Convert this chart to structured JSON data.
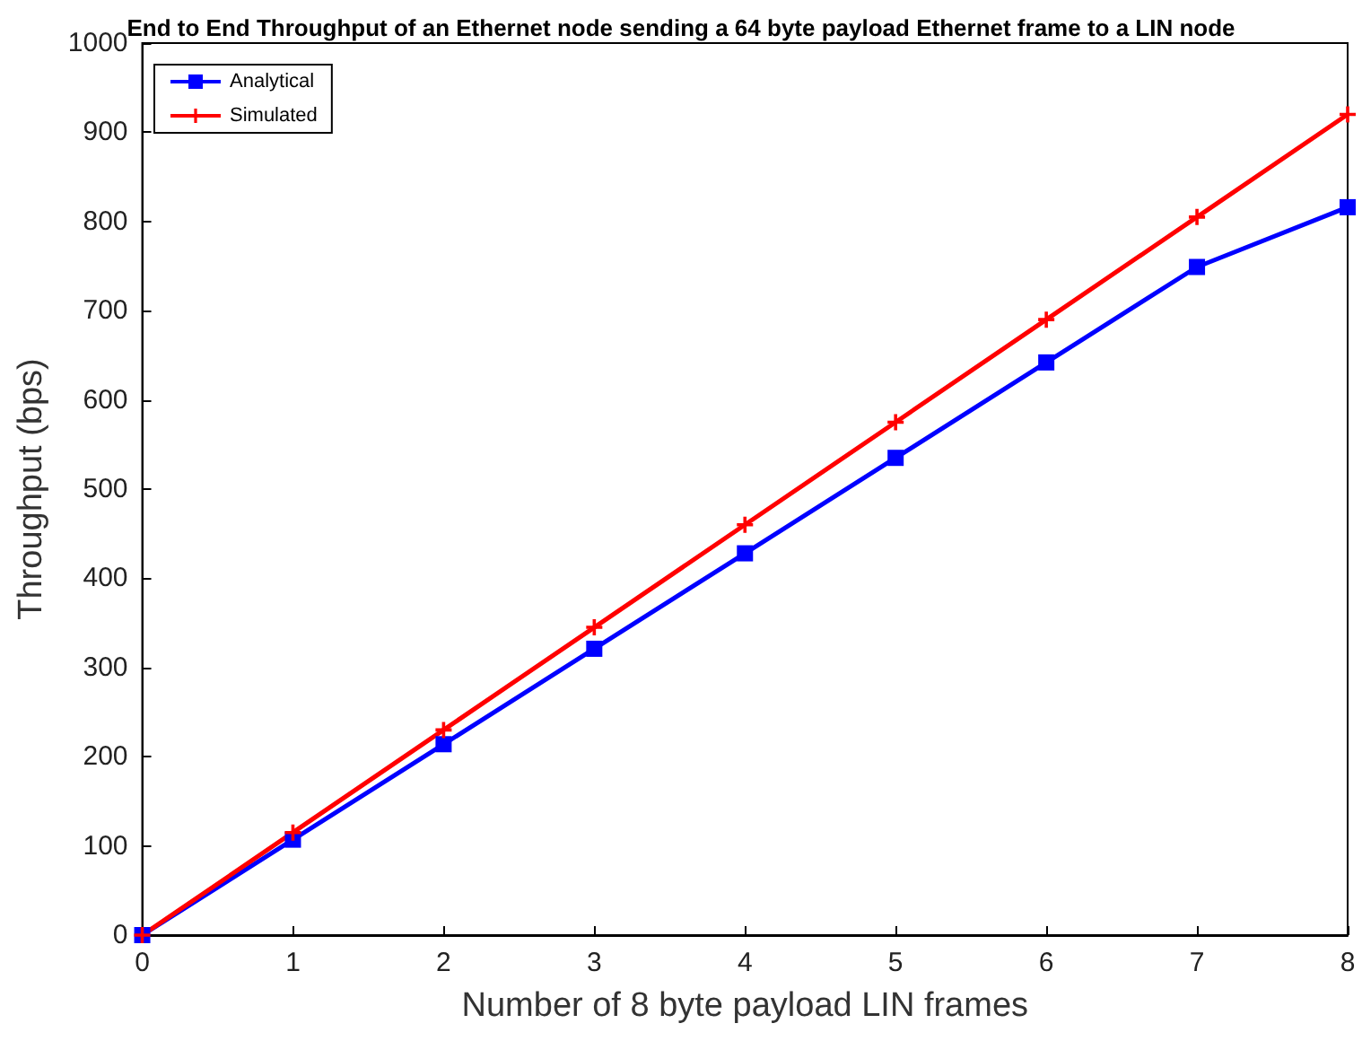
{
  "chart_data": {
    "type": "line",
    "title": "End to End Throughput of an Ethernet node sending a 64 byte payload Ethernet frame to a LIN node",
    "xlabel": "Number of 8 byte payload LIN frames",
    "ylabel": "Throughput (bps)",
    "x": [
      0,
      1,
      2,
      3,
      4,
      5,
      6,
      7,
      8
    ],
    "series": [
      {
        "name": "Analytical",
        "color": "#0000ff",
        "marker": "square",
        "values": [
          0,
          107,
          214,
          321,
          428,
          535,
          642,
          749,
          816
        ]
      },
      {
        "name": "Simulated",
        "color": "#ff0000",
        "marker": "cross",
        "values": [
          0,
          115,
          230,
          345,
          460,
          575,
          690,
          805,
          920
        ]
      }
    ],
    "xlim": [
      0,
      8
    ],
    "xticks": [
      0,
      1,
      2,
      3,
      4,
      5,
      6,
      7,
      8
    ],
    "ylim": [
      0,
      1000
    ],
    "yticks": [
      0,
      100,
      200,
      300,
      400,
      500,
      600,
      700,
      800,
      900,
      1000
    ],
    "grid": false,
    "legend": "top left",
    "line_style": "solid"
  }
}
